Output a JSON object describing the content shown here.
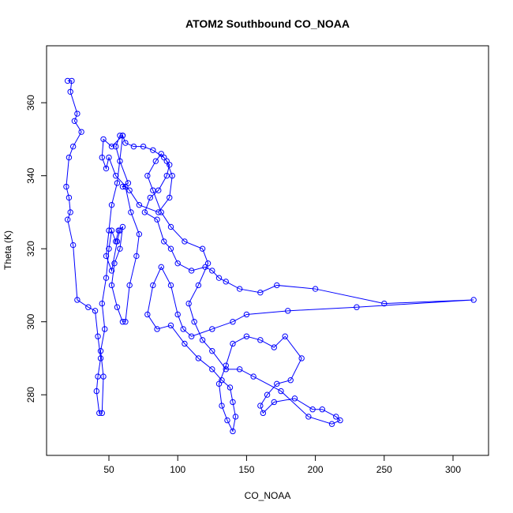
{
  "chart_data": {
    "type": "line",
    "title": "ATOM2 Southbound CO_NOAA",
    "x_label": "CO_NOAA",
    "y_label": "Theta (K)",
    "color": "#0000ff",
    "markers": true,
    "xlim": [
      4.7,
      325.8
    ],
    "ylim": [
      263.4,
      375.6
    ],
    "xticks": [
      50,
      100,
      150,
      200,
      250,
      300
    ],
    "yticks": [
      280,
      300,
      320,
      340,
      360
    ],
    "x": [
      20,
      23,
      22,
      27,
      25,
      30,
      24,
      21,
      19,
      21,
      22,
      20,
      24,
      27,
      35,
      40,
      42,
      44,
      42,
      41,
      43,
      45,
      46,
      44,
      47,
      45,
      48,
      50,
      52,
      55,
      57,
      60,
      58,
      54,
      52,
      56,
      60,
      62,
      65,
      70,
      72,
      66,
      62,
      60,
      64,
      58,
      55,
      58,
      60,
      62,
      68,
      75,
      82,
      90,
      94,
      92,
      86,
      80,
      76,
      85,
      90,
      95,
      100,
      110,
      120,
      125,
      130,
      135,
      145,
      160,
      172,
      200,
      250,
      315,
      230,
      180,
      150,
      140,
      125,
      110,
      104,
      100,
      95,
      88,
      82,
      78,
      85,
      95,
      105,
      115,
      125,
      132,
      138,
      140,
      142,
      140,
      136,
      132,
      130,
      135,
      140,
      150,
      160,
      170,
      178,
      190,
      182,
      172,
      165,
      160,
      162,
      170,
      185,
      198,
      205,
      215,
      218,
      212,
      195,
      175,
      155,
      145,
      135,
      125,
      118,
      112,
      108,
      115,
      122,
      118,
      105,
      95,
      88,
      82,
      78,
      84,
      88,
      92,
      96,
      94,
      86,
      72,
      65,
      55,
      50,
      48,
      45,
      46,
      52,
      60,
      56,
      52,
      50,
      48,
      52,
      56,
      58
    ],
    "values": [
      366,
      366,
      363,
      357,
      355,
      352,
      348,
      345,
      337,
      334,
      330,
      328,
      321,
      306,
      304,
      303,
      296,
      290,
      285,
      281,
      275,
      275,
      285,
      292,
      298,
      305,
      312,
      320,
      325,
      322,
      325,
      326,
      320,
      316,
      310,
      304,
      300,
      300,
      310,
      318,
      324,
      330,
      337,
      337,
      338,
      344,
      348,
      351,
      351,
      349,
      348,
      348,
      347,
      345,
      343,
      340,
      336,
      334,
      330,
      328,
      322,
      320,
      316,
      314,
      315,
      314,
      312,
      311,
      309,
      308,
      310,
      309,
      305,
      306,
      304,
      303,
      302,
      300,
      298,
      296,
      298,
      302,
      310,
      315,
      310,
      302,
      298,
      299,
      294,
      290,
      287,
      284,
      282,
      278,
      274,
      270,
      273,
      277,
      283,
      288,
      294,
      296,
      295,
      293,
      296,
      290,
      284,
      283,
      280,
      277,
      275,
      278,
      279,
      276,
      276,
      274,
      273,
      272,
      274,
      281,
      285,
      287,
      287,
      292,
      295,
      300,
      305,
      310,
      316,
      320,
      322,
      326,
      330,
      336,
      340,
      344,
      346,
      344,
      340,
      334,
      330,
      332,
      336,
      340,
      345,
      342,
      345,
      350,
      348,
      351,
      338,
      332,
      325,
      318,
      314,
      322,
      325
    ]
  }
}
